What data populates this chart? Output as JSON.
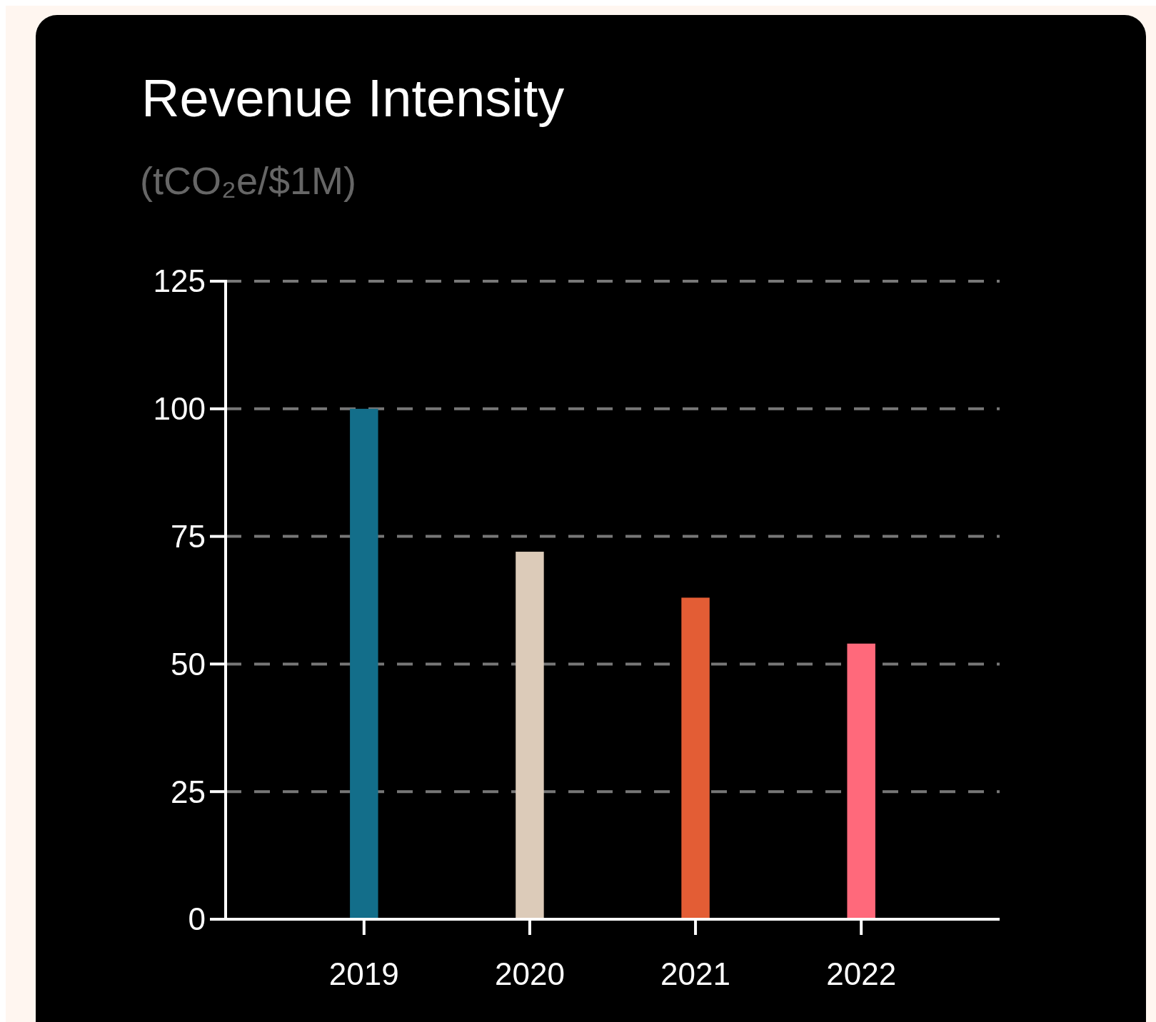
{
  "chart_data": {
    "type": "bar",
    "title": "Revenue Intensity",
    "subtitle": "(tCO₂e/$1M)",
    "categories": [
      "2019",
      "2020",
      "2021",
      "2022"
    ],
    "values": [
      100,
      72,
      63,
      54
    ],
    "colors": [
      "#136e8a",
      "#dccbb9",
      "#e35d35",
      "#ff697b"
    ],
    "ylim": [
      0,
      125
    ],
    "yticks": [
      0,
      25,
      50,
      75,
      100,
      125
    ],
    "grid": "y"
  }
}
